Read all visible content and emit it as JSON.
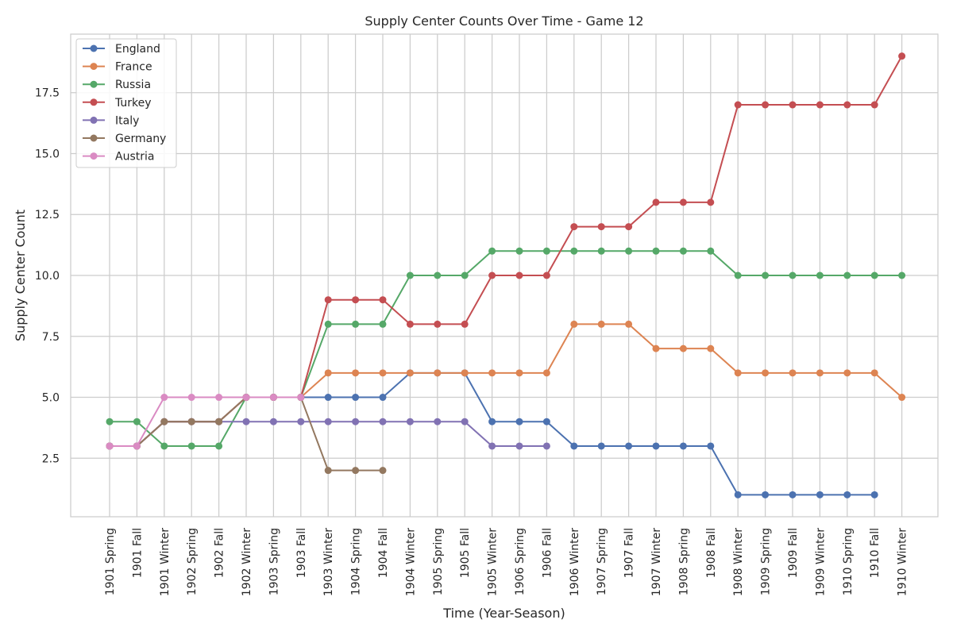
{
  "chart_data": {
    "type": "line",
    "title": "Supply Center Counts Over Time - Game 12",
    "xlabel": "Time (Year-Season)",
    "ylabel": "Supply Center Count",
    "categories": [
      "1901 Spring",
      "1901 Fall",
      "1901 Winter",
      "1902 Spring",
      "1902 Fall",
      "1902 Winter",
      "1903 Spring",
      "1903 Fall",
      "1903 Winter",
      "1904 Spring",
      "1904 Fall",
      "1904 Winter",
      "1905 Spring",
      "1905 Fall",
      "1905 Winter",
      "1906 Spring",
      "1906 Fall",
      "1906 Winter",
      "1907 Spring",
      "1907 Fall",
      "1907 Winter",
      "1908 Spring",
      "1908 Fall",
      "1908 Winter",
      "1909 Spring",
      "1909 Fall",
      "1909 Winter",
      "1910 Spring",
      "1910 Fall",
      "1910 Winter"
    ],
    "ylim": [
      0.1,
      19.9
    ],
    "yticks": [
      2.5,
      5.0,
      7.5,
      10.0,
      12.5,
      15.0,
      17.5
    ],
    "ytick_labels": [
      "2.5",
      "5.0",
      "7.5",
      "10.0",
      "12.5",
      "15.0",
      "17.5"
    ],
    "grid": true,
    "legend_position": "top-left",
    "series": [
      {
        "name": "England",
        "color": "#4c72b0",
        "values": [
          3,
          3,
          4,
          4,
          4,
          5,
          5,
          5,
          5,
          5,
          5,
          6,
          6,
          6,
          4,
          4,
          4,
          3,
          3,
          3,
          3,
          3,
          3,
          1,
          1,
          1,
          1,
          1,
          1,
          null
        ]
      },
      {
        "name": "France",
        "color": "#dd8452",
        "values": [
          3,
          3,
          4,
          4,
          4,
          5,
          5,
          5,
          6,
          6,
          6,
          6,
          6,
          6,
          6,
          6,
          6,
          8,
          8,
          8,
          7,
          7,
          7,
          6,
          6,
          6,
          6,
          6,
          6,
          5
        ]
      },
      {
        "name": "Russia",
        "color": "#55a868",
        "values": [
          4,
          4,
          3,
          3,
          3,
          5,
          5,
          5,
          8,
          8,
          8,
          10,
          10,
          10,
          11,
          11,
          11,
          11,
          11,
          11,
          11,
          11,
          11,
          10,
          10,
          10,
          10,
          10,
          10,
          10
        ]
      },
      {
        "name": "Turkey",
        "color": "#c44e52",
        "values": [
          3,
          3,
          4,
          4,
          4,
          5,
          5,
          5,
          9,
          9,
          9,
          8,
          8,
          8,
          10,
          10,
          10,
          12,
          12,
          12,
          13,
          13,
          13,
          17,
          17,
          17,
          17,
          17,
          17,
          19
        ]
      },
      {
        "name": "Italy",
        "color": "#8172b3",
        "values": [
          3,
          3,
          4,
          4,
          4,
          4,
          4,
          4,
          4,
          4,
          4,
          4,
          4,
          4,
          3,
          3,
          3,
          null,
          null,
          null,
          null,
          null,
          null,
          null,
          null,
          null,
          null,
          null,
          null,
          null
        ]
      },
      {
        "name": "Germany",
        "color": "#937860",
        "values": [
          3,
          3,
          4,
          4,
          4,
          5,
          5,
          5,
          2,
          2,
          2,
          null,
          null,
          null,
          null,
          null,
          null,
          null,
          null,
          null,
          null,
          null,
          null,
          null,
          null,
          null,
          null,
          null,
          null,
          null
        ]
      },
      {
        "name": "Austria",
        "color": "#da8bc3",
        "values": [
          3,
          3,
          5,
          5,
          5,
          5,
          5,
          5,
          null,
          null,
          null,
          null,
          null,
          null,
          null,
          null,
          null,
          null,
          null,
          null,
          null,
          null,
          null,
          null,
          null,
          null,
          null,
          null,
          null,
          null
        ]
      }
    ]
  }
}
